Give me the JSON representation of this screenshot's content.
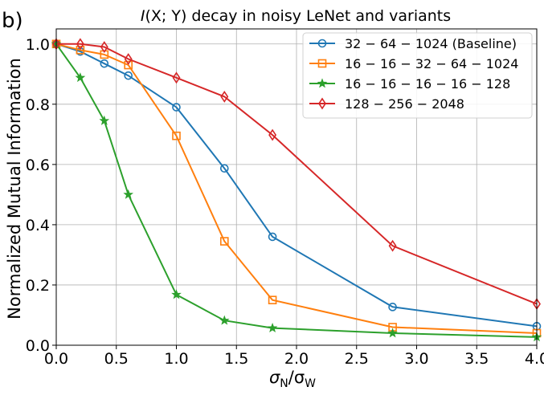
{
  "panel_label": "b)",
  "title_prefix": "I",
  "title_paren": "(X; Y)",
  "title_rest": " decay in noisy LeNet and variants",
  "xlabel_main": "σ",
  "xlabel_sub1": "N",
  "xlabel_slash": "/σ",
  "xlabel_sub2": "W",
  "ylabel": "Normalized Mutual Information",
  "chart_data": {
    "type": "line",
    "title": "I(X;Y) decay in noisy LeNet and variants",
    "xlabel": "σN/σW",
    "ylabel": "Normalized Mutual Information",
    "xlim": [
      0.0,
      4.0
    ],
    "ylim": [
      0.0,
      1.05
    ],
    "xticks": [
      "0.0",
      "0.5",
      "1.0",
      "1.5",
      "2.0",
      "2.5",
      "3.0",
      "3.5",
      "4.0"
    ],
    "yticks": [
      "0.0",
      "0.2",
      "0.4",
      "0.6",
      "0.8",
      "1.0"
    ],
    "grid": true,
    "legend_position": "top-right",
    "x": [
      0.0,
      0.2,
      0.4,
      0.6,
      1.0,
      1.4,
      1.8,
      2.8,
      4.0
    ],
    "series": [
      {
        "name": "32 − 64 − 1024 (Baseline)",
        "color": "#1f77b4",
        "marker": "circle",
        "values": [
          1.0,
          0.975,
          0.935,
          0.895,
          0.79,
          0.587,
          0.36,
          0.127,
          0.063
        ]
      },
      {
        "name": "16 − 16 − 32 − 64 − 1024",
        "color": "#ff7f0e",
        "marker": "square",
        "values": [
          1.0,
          0.98,
          0.965,
          0.93,
          0.695,
          0.345,
          0.15,
          0.06,
          0.04
        ]
      },
      {
        "name": "16 − 16 − 16 − 16 − 128",
        "color": "#2ca02c",
        "marker": "star",
        "values": [
          1.0,
          0.888,
          0.745,
          0.5,
          0.168,
          0.082,
          0.057,
          0.04,
          0.027
        ]
      },
      {
        "name": "128 − 256 − 2048",
        "color": "#d62728",
        "marker": "diamond",
        "values": [
          1.0,
          1.0,
          0.99,
          0.95,
          0.888,
          0.825,
          0.698,
          0.33,
          0.137
        ]
      }
    ]
  }
}
